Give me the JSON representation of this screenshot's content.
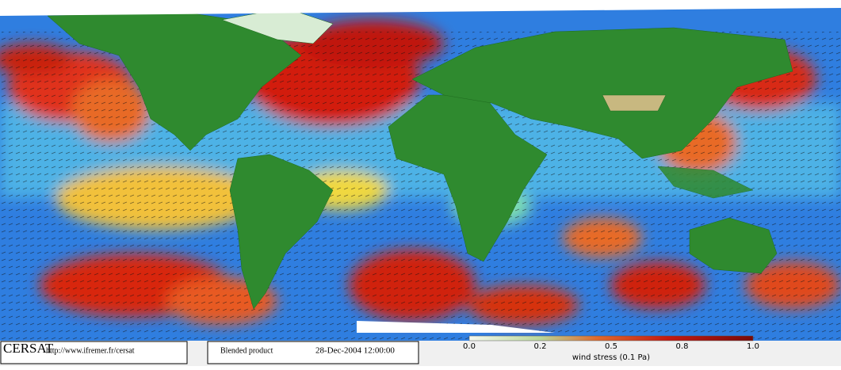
{
  "logo": "CERSAT",
  "url": "http://www.ifremer.fr/cersat",
  "product": "Blended product",
  "date": "28-Dec-2004 12:00:00",
  "colorbar": {
    "labels": [
      "0.0",
      "0.2",
      "0.5",
      "0.8",
      "1.0"
    ],
    "title": "wind stress (0.1 Pa)"
  }
}
